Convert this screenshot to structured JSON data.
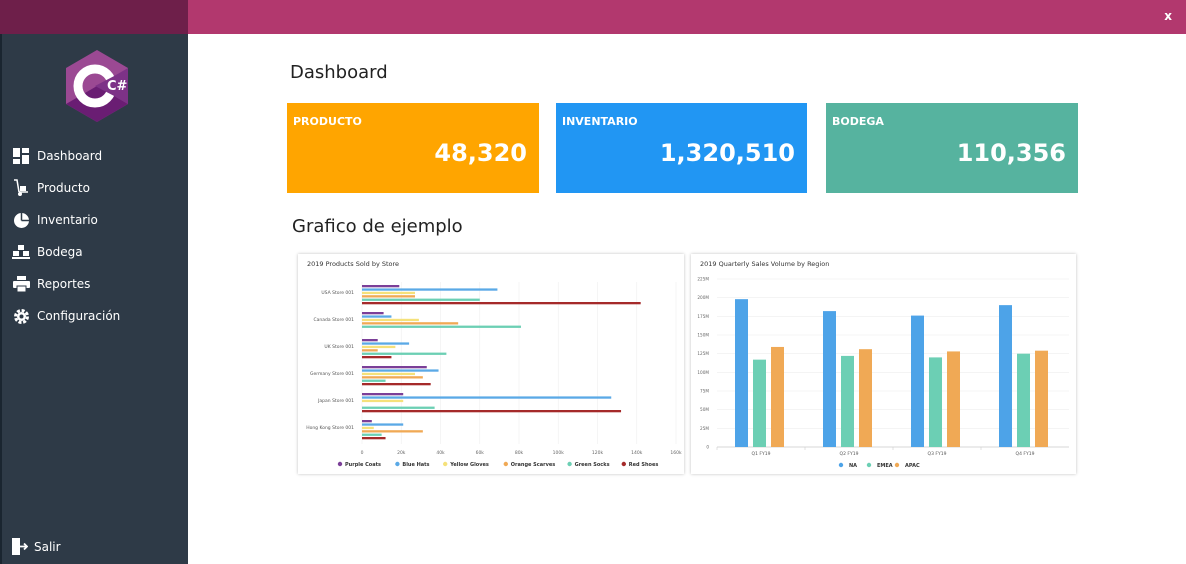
{
  "window": {
    "close_label": "x"
  },
  "sidebar": {
    "logo_glyph": "C#",
    "items": [
      {
        "label": "Dashboard",
        "icon": "dashboard-icon"
      },
      {
        "label": "Producto",
        "icon": "hand-truck-icon"
      },
      {
        "label": "Inventario",
        "icon": "pie-chart-icon"
      },
      {
        "label": "Bodega",
        "icon": "warehouse-icon"
      },
      {
        "label": "Reportes",
        "icon": "printer-icon"
      },
      {
        "label": "Configuración",
        "icon": "gear-icon"
      }
    ],
    "logout_label": "Salir"
  },
  "main": {
    "title": "Dashboard",
    "cards": [
      {
        "label": "PRODUCTO",
        "value": "48,320",
        "color": "#ffa500"
      },
      {
        "label": "INVENTARIO",
        "value": "1,320,510",
        "color": "#2196f3"
      },
      {
        "label": "BODEGA",
        "value": "110,356",
        "color": "#56b39f"
      }
    ],
    "charts_title": "Grafico de ejemplo"
  },
  "chart_data": [
    {
      "type": "bar",
      "orientation": "horizontal",
      "title": "2019 Products Sold by Store",
      "categories": [
        "USA Store 001",
        "Canada Store 001",
        "UK Store 001",
        "Germany Store 001",
        "Japan Store 001",
        "Hong Kong Store 001"
      ],
      "xlim": [
        0,
        160000
      ],
      "tick_labels": [
        "0",
        "20k",
        "40k",
        "60k",
        "80k",
        "100k",
        "120k",
        "140k",
        "160k"
      ],
      "legend_position": "bottom",
      "series": [
        {
          "name": "Purple Coats",
          "color": "#7b3f98",
          "values": [
            19000,
            11000,
            8000,
            33000,
            21000,
            5000
          ]
        },
        {
          "name": "Blue Hats",
          "color": "#5aa9e6",
          "values": [
            69000,
            15000,
            24000,
            39000,
            127000,
            21000
          ]
        },
        {
          "name": "Yellow Gloves",
          "color": "#f5e17a",
          "values": [
            27000,
            29000,
            17000,
            27000,
            21000,
            6000
          ]
        },
        {
          "name": "Orange Scarves",
          "color": "#f0a955",
          "values": [
            27000,
            49000,
            8000,
            31000,
            0,
            31000
          ]
        },
        {
          "name": "Green Socks",
          "color": "#6ccfb4",
          "values": [
            60000,
            81000,
            43000,
            12000,
            37000,
            10000
          ]
        },
        {
          "name": "Red Shoes",
          "color": "#a52a2a",
          "values": [
            142000,
            0,
            15000,
            35000,
            132000,
            12000
          ]
        }
      ]
    },
    {
      "type": "bar",
      "title": "2019 Quarterly Sales Volume by Region",
      "categories": [
        "Q1 FY19",
        "Q2 FY19",
        "Q3 FY19",
        "Q4 FY19"
      ],
      "ylim": [
        0,
        225000
      ],
      "tick_labels": [
        "0",
        "25M",
        "50M",
        "75M",
        "100M",
        "125M",
        "150M",
        "175M",
        "200M",
        "225M"
      ],
      "legend_position": "bottom",
      "series": [
        {
          "name": "NA",
          "color": "#4da3e8",
          "values": [
            198000,
            182000,
            176000,
            190000
          ]
        },
        {
          "name": "EMEA",
          "color": "#6ccfb4",
          "values": [
            117000,
            122000,
            120000,
            125000
          ]
        },
        {
          "name": "APAC",
          "color": "#f0a955",
          "values": [
            134000,
            131000,
            128000,
            129000
          ]
        }
      ]
    }
  ]
}
